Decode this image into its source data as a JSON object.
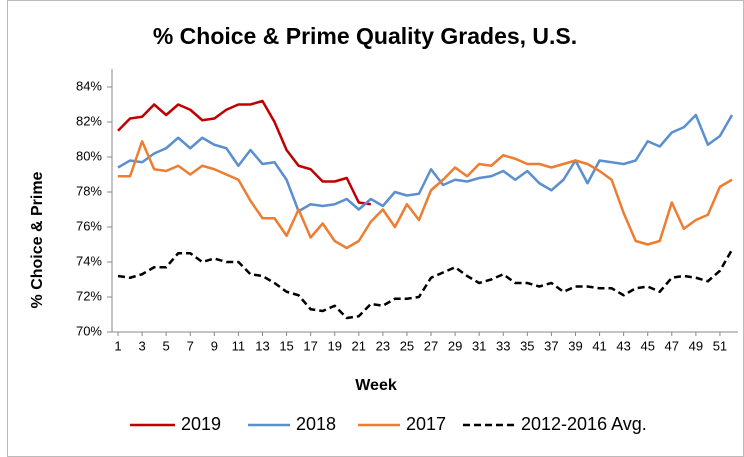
{
  "chart_data": {
    "type": "line",
    "title": "% Choice & Prime Quality Grades, U.S.",
    "x_label": "Week",
    "y_label": "% Choice & Prime",
    "x": [
      1,
      2,
      3,
      4,
      5,
      6,
      7,
      8,
      9,
      10,
      11,
      12,
      13,
      14,
      15,
      16,
      17,
      18,
      19,
      20,
      21,
      22,
      23,
      24,
      25,
      26,
      27,
      28,
      29,
      30,
      31,
      32,
      33,
      34,
      35,
      36,
      37,
      38,
      39,
      40,
      41,
      42,
      43,
      44,
      45,
      46,
      47,
      48,
      49,
      50,
      51,
      52
    ],
    "xlim": [
      0.5,
      52.5
    ],
    "xticks": [
      1,
      3,
      5,
      7,
      9,
      11,
      13,
      15,
      17,
      19,
      21,
      23,
      25,
      27,
      29,
      31,
      33,
      35,
      37,
      39,
      41,
      43,
      45,
      47,
      49,
      51
    ],
    "ylim": [
      70,
      84
    ],
    "yticks": [
      {
        "value": 70,
        "label": "70%"
      },
      {
        "value": 72,
        "label": "72%"
      },
      {
        "value": 74,
        "label": "74%"
      },
      {
        "value": 76,
        "label": "76%"
      },
      {
        "value": 78,
        "label": "78%"
      },
      {
        "value": 80,
        "label": "80%"
      },
      {
        "value": 82,
        "label": "82%"
      },
      {
        "value": 84,
        "label": "84%"
      }
    ],
    "grid": false,
    "legend": "bottom",
    "series": [
      {
        "name": "2019",
        "color": "#c00000",
        "dash": false,
        "values": [
          81.5,
          82.2,
          82.3,
          83.0,
          82.4,
          83.0,
          82.7,
          82.1,
          82.2,
          82.7,
          83.0,
          83.0,
          83.2,
          82.0,
          80.4,
          79.5,
          79.3,
          78.6,
          78.6,
          78.8,
          77.4,
          77.3,
          null,
          null,
          null,
          null,
          null,
          null,
          null,
          null,
          null,
          null,
          null,
          null,
          null,
          null,
          null,
          null,
          null,
          null,
          null,
          null,
          null,
          null,
          null,
          null,
          null,
          null,
          null,
          null,
          null,
          null
        ]
      },
      {
        "name": "2018",
        "color": "#5b8fd0",
        "dash": false,
        "values": [
          79.4,
          79.8,
          79.7,
          80.2,
          80.5,
          81.1,
          80.5,
          81.1,
          80.7,
          80.5,
          79.5,
          80.4,
          79.6,
          79.7,
          78.7,
          76.9,
          77.3,
          77.2,
          77.3,
          77.6,
          77.0,
          77.6,
          77.2,
          78.0,
          77.8,
          77.9,
          79.3,
          78.4,
          78.7,
          78.6,
          78.8,
          78.9,
          79.2,
          78.7,
          79.2,
          78.5,
          78.1,
          78.7,
          79.8,
          78.5,
          79.8,
          79.7,
          79.6,
          79.8,
          80.9,
          80.6,
          81.4,
          81.7,
          82.4,
          80.7,
          81.2,
          82.4
        ]
      },
      {
        "name": "2017",
        "color": "#ed7d31",
        "dash": false,
        "values": [
          78.9,
          78.9,
          80.9,
          79.3,
          79.2,
          79.5,
          79.0,
          79.5,
          79.3,
          79.0,
          78.7,
          77.5,
          76.5,
          76.5,
          75.5,
          77.0,
          75.4,
          76.2,
          75.2,
          74.8,
          75.2,
          76.3,
          77.0,
          76.0,
          77.3,
          76.4,
          78.1,
          78.7,
          79.4,
          78.9,
          79.6,
          79.5,
          80.1,
          79.9,
          79.6,
          79.6,
          79.4,
          79.6,
          79.8,
          79.6,
          79.2,
          78.7,
          76.8,
          75.2,
          75.0,
          75.2,
          77.4,
          75.9,
          76.4,
          76.7,
          78.3,
          78.7
        ]
      },
      {
        "name": "2012-2016 Avg.",
        "color": "#000000",
        "dash": true,
        "values": [
          73.2,
          73.1,
          73.3,
          73.7,
          73.7,
          74.5,
          74.5,
          74.0,
          74.2,
          74.0,
          74.0,
          73.3,
          73.2,
          72.8,
          72.3,
          72.1,
          71.3,
          71.2,
          71.5,
          70.8,
          70.9,
          71.6,
          71.5,
          71.9,
          71.9,
          72.0,
          73.1,
          73.4,
          73.7,
          73.2,
          72.8,
          73.0,
          73.3,
          72.8,
          72.8,
          72.6,
          72.8,
          72.3,
          72.6,
          72.6,
          72.5,
          72.5,
          72.1,
          72.5,
          72.6,
          72.3,
          73.1,
          73.2,
          73.1,
          72.9,
          73.5,
          74.7
        ]
      }
    ]
  }
}
